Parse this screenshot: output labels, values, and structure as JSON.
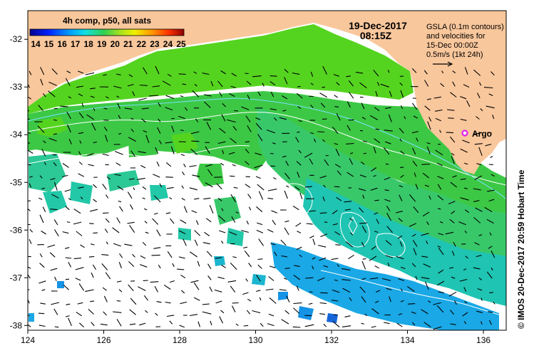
{
  "map": {
    "legend_title": "4h comp, p50, all sats",
    "colorbar_ticks": [
      "14",
      "15",
      "16",
      "17",
      "18",
      "19",
      "20",
      "21",
      "22",
      "23",
      "24",
      "25"
    ],
    "colorbar_min": 14,
    "colorbar_max": 25,
    "date": "19-Dec-2017",
    "time": "08:15Z",
    "gsla_lines": [
      "GSLA (0.1m contours)",
      "and velocities for",
      "15-Dec 00:00Z",
      "0.5m/s (1kt 24h)"
    ],
    "float_label": "Argo",
    "credit": "©  IMOS 20-Dec-2017 20:59 Hobart Time",
    "lon_ticks": [
      "124",
      "126",
      "128",
      "130",
      "132",
      "134",
      "136"
    ],
    "lat_ticks": [
      "-32",
      "-33",
      "-34",
      "-35",
      "-36",
      "-37",
      "-38"
    ],
    "lon_range": [
      124,
      136.6
    ],
    "lat_range": [
      -38.1,
      -31.4
    ],
    "colors": {
      "land": "#f9c79c",
      "warm_water": "#55d41f",
      "cool_water": "#19c7b4",
      "cold_water": "#1593e6",
      "argo_marker": "#e21fe6"
    }
  }
}
